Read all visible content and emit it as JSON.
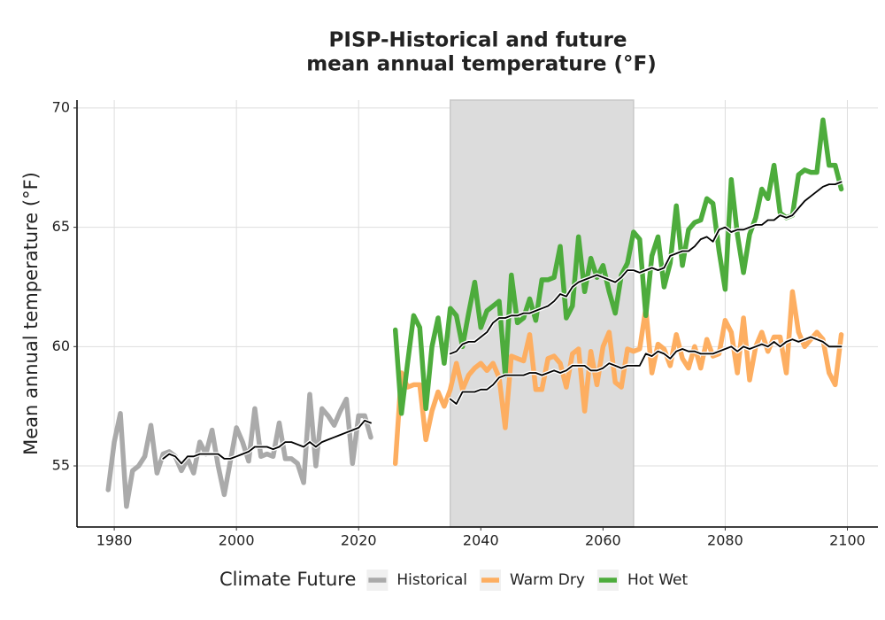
{
  "chart_data": {
    "type": "line",
    "title": [
      "PISP-Historical and future",
      "mean annual temperature (°F)"
    ],
    "y_label": "Mean annual temperature (°F)",
    "legend_title": "Climate Future",
    "legend": "bottom",
    "grid": true,
    "xlim": [
      1973.9,
      2105
    ],
    "ylim": [
      52.44,
      70.33
    ],
    "xticks": [
      1980,
      2000,
      2020,
      2040,
      2060,
      2080,
      2100
    ],
    "yticks": [
      55,
      60,
      65,
      70
    ],
    "shade": [
      2035,
      2065
    ],
    "smoothed_color": "#000000",
    "series": [
      {
        "name": "Historical",
        "color": "#aaaaaa",
        "x": [
          1979,
          1980,
          1981,
          1982,
          1983,
          1984,
          1985,
          1986,
          1987,
          1988,
          1989,
          1990,
          1991,
          1992,
          1993,
          1994,
          1995,
          1996,
          1997,
          1998,
          1999,
          2000,
          2001,
          2002,
          2003,
          2004,
          2005,
          2006,
          2007,
          2008,
          2009,
          2010,
          2011,
          2012,
          2013,
          2014,
          2015,
          2016,
          2017,
          2018,
          2019,
          2020,
          2021,
          2022
        ],
        "values": [
          54.0,
          56.0,
          57.2,
          53.3,
          54.8,
          55.0,
          55.4,
          56.7,
          54.7,
          55.5,
          55.6,
          55.4,
          54.8,
          55.3,
          54.7,
          56.0,
          55.5,
          56.5,
          55.0,
          53.8,
          55.2,
          56.6,
          56.0,
          55.2,
          57.4,
          55.4,
          55.5,
          55.4,
          56.8,
          55.3,
          55.3,
          55.1,
          54.3,
          58.0,
          55.0,
          57.4,
          57.1,
          56.7,
          57.3,
          57.8,
          55.1,
          57.1,
          57.1,
          56.2
        ],
        "smoothed": [
          null,
          null,
          null,
          null,
          null,
          null,
          null,
          null,
          null,
          55.3,
          55.5,
          55.4,
          55.1,
          55.4,
          55.4,
          55.5,
          55.5,
          55.5,
          55.5,
          55.3,
          55.3,
          55.4,
          55.5,
          55.6,
          55.8,
          55.8,
          55.8,
          55.7,
          55.8,
          56.0,
          56.0,
          55.9,
          55.8,
          56.0,
          55.8,
          56.0,
          56.1,
          56.2,
          56.3,
          56.4,
          56.5,
          56.6,
          56.9,
          56.8
        ]
      },
      {
        "name": "Warm Dry",
        "color": "#fdae61",
        "x": [
          2026,
          2027,
          2028,
          2029,
          2030,
          2031,
          2032,
          2033,
          2034,
          2035,
          2036,
          2037,
          2038,
          2039,
          2040,
          2041,
          2042,
          2043,
          2044,
          2045,
          2046,
          2047,
          2048,
          2049,
          2050,
          2051,
          2052,
          2053,
          2054,
          2055,
          2056,
          2057,
          2058,
          2059,
          2060,
          2061,
          2062,
          2063,
          2064,
          2065,
          2066,
          2067,
          2068,
          2069,
          2070,
          2071,
          2072,
          2073,
          2074,
          2075,
          2076,
          2077,
          2078,
          2079,
          2080,
          2081,
          2082,
          2083,
          2084,
          2085,
          2086,
          2087,
          2088,
          2089,
          2090,
          2091,
          2092,
          2093,
          2094,
          2095,
          2096,
          2097,
          2098,
          2099
        ],
        "values": [
          55.1,
          58.9,
          58.3,
          58.4,
          58.4,
          56.1,
          57.3,
          58.1,
          57.5,
          58.2,
          59.3,
          58.2,
          58.8,
          59.1,
          59.3,
          59.0,
          59.3,
          58.7,
          56.6,
          59.6,
          59.5,
          59.4,
          60.5,
          58.2,
          58.2,
          59.5,
          59.6,
          59.3,
          58.3,
          59.7,
          59.9,
          57.3,
          59.8,
          58.4,
          60.0,
          60.6,
          58.5,
          58.3,
          59.9,
          59.8,
          59.9,
          61.6,
          58.9,
          60.1,
          59.9,
          59.2,
          60.5,
          59.5,
          59.1,
          60.0,
          59.1,
          60.3,
          59.6,
          59.7,
          61.1,
          60.6,
          58.9,
          61.2,
          58.6,
          60.0,
          60.6,
          59.8,
          60.4,
          60.4,
          58.9,
          62.3,
          60.6,
          60.0,
          60.3,
          60.6,
          60.3,
          58.9,
          58.4,
          60.5
        ],
        "smoothed": [
          null,
          null,
          null,
          null,
          null,
          null,
          null,
          null,
          null,
          57.8,
          57.6,
          58.1,
          58.1,
          58.1,
          58.2,
          58.2,
          58.4,
          58.7,
          58.8,
          58.8,
          58.8,
          58.8,
          58.9,
          58.9,
          58.8,
          58.9,
          59.0,
          58.9,
          59.0,
          59.2,
          59.2,
          59.2,
          59.0,
          59.0,
          59.1,
          59.3,
          59.2,
          59.1,
          59.2,
          59.2,
          59.2,
          59.7,
          59.6,
          59.8,
          59.7,
          59.5,
          59.8,
          59.9,
          59.8,
          59.8,
          59.7,
          59.7,
          59.7,
          59.8,
          59.9,
          60.0,
          59.8,
          60.0,
          59.9,
          60.0,
          60.1,
          60.0,
          60.2,
          60.0,
          60.2,
          60.3,
          60.2,
          60.3,
          60.4,
          60.3,
          60.2,
          60.0,
          60.0,
          60.0
        ]
      },
      {
        "name": "Hot Wet",
        "color": "#4dac3c",
        "x": [
          2026,
          2027,
          2028,
          2029,
          2030,
          2031,
          2032,
          2033,
          2034,
          2035,
          2036,
          2037,
          2038,
          2039,
          2040,
          2041,
          2042,
          2043,
          2044,
          2045,
          2046,
          2047,
          2048,
          2049,
          2050,
          2051,
          2052,
          2053,
          2054,
          2055,
          2056,
          2057,
          2058,
          2059,
          2060,
          2061,
          2062,
          2063,
          2064,
          2065,
          2066,
          2067,
          2068,
          2069,
          2070,
          2071,
          2072,
          2073,
          2074,
          2075,
          2076,
          2077,
          2078,
          2079,
          2080,
          2081,
          2082,
          2083,
          2084,
          2085,
          2086,
          2087,
          2088,
          2089,
          2090,
          2091,
          2092,
          2093,
          2094,
          2095,
          2096,
          2097,
          2098,
          2099
        ],
        "values": [
          60.7,
          57.2,
          59.3,
          61.3,
          60.8,
          57.4,
          60.0,
          61.2,
          59.3,
          61.6,
          61.3,
          60.0,
          61.4,
          62.7,
          60.8,
          61.5,
          61.7,
          61.9,
          58.8,
          63.0,
          61.0,
          61.2,
          62.0,
          61.1,
          62.8,
          62.8,
          62.9,
          64.2,
          61.2,
          61.7,
          64.6,
          62.3,
          63.7,
          62.9,
          63.4,
          62.3,
          61.4,
          63.0,
          63.5,
          64.8,
          64.5,
          61.3,
          63.8,
          64.6,
          62.5,
          63.5,
          65.9,
          63.4,
          64.9,
          65.2,
          65.3,
          66.2,
          66.0,
          64.0,
          62.4,
          67.0,
          64.7,
          63.1,
          64.7,
          65.4,
          66.6,
          66.2,
          67.6,
          65.6,
          65.4,
          65.5,
          67.2,
          67.4,
          67.3,
          67.3,
          69.5,
          67.6,
          67.6,
          66.6
        ],
        "smoothed": [
          null,
          null,
          null,
          null,
          null,
          null,
          null,
          null,
          null,
          59.7,
          59.8,
          60.1,
          60.2,
          60.2,
          60.4,
          60.6,
          61.0,
          61.2,
          61.2,
          61.3,
          61.3,
          61.4,
          61.4,
          61.5,
          61.6,
          61.7,
          61.9,
          62.2,
          62.1,
          62.5,
          62.7,
          62.8,
          62.9,
          63.0,
          62.9,
          62.8,
          62.7,
          62.9,
          63.2,
          63.2,
          63.1,
          63.2,
          63.3,
          63.2,
          63.3,
          63.8,
          63.9,
          64.0,
          64.0,
          64.2,
          64.5,
          64.6,
          64.4,
          64.9,
          65.0,
          64.8,
          64.9,
          64.9,
          65.0,
          65.1,
          65.1,
          65.3,
          65.3,
          65.5,
          65.4,
          65.5,
          65.8,
          66.1,
          66.3,
          66.5,
          66.7,
          66.8,
          66.8,
          66.9
        ]
      }
    ]
  }
}
